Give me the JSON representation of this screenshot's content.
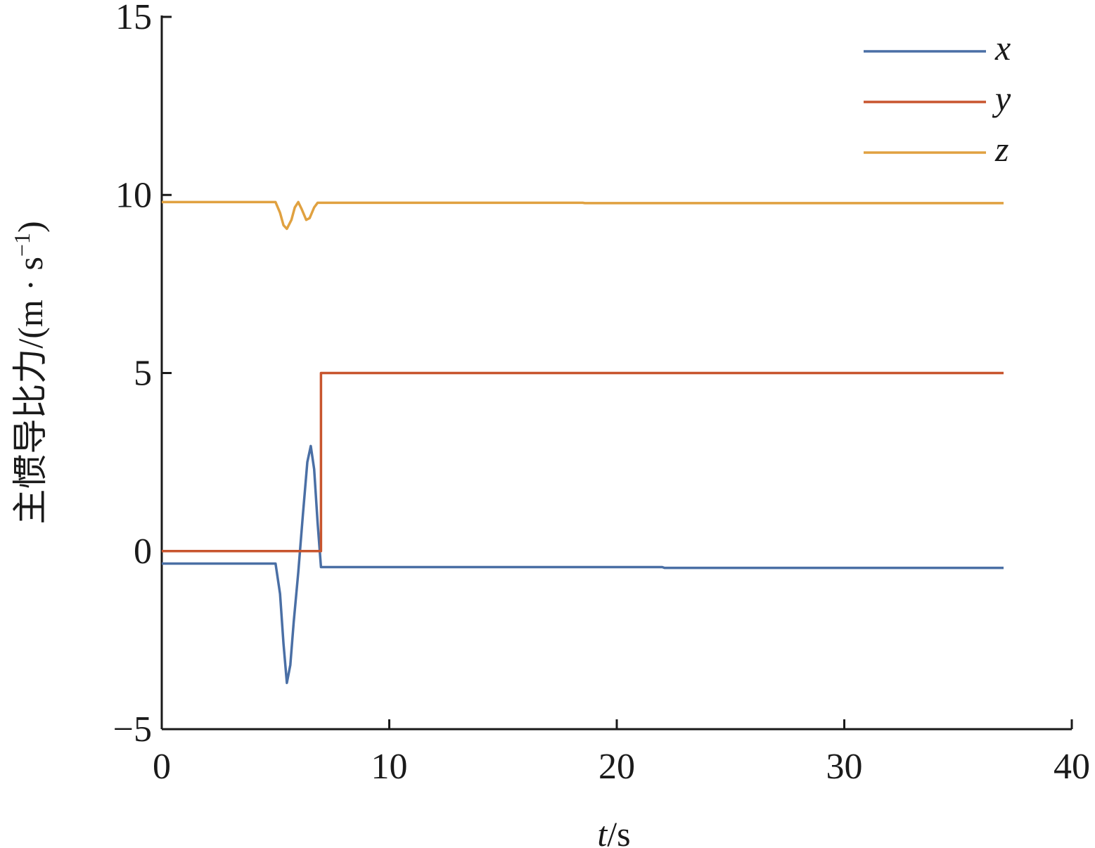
{
  "chart_data": {
    "type": "line",
    "title": "",
    "xlabel_italic": "t",
    "xlabel_unit": "/s",
    "ylabel": "主惯导比力/(m · s",
    "ylabel_sup": "−1",
    "ylabel_close": ")",
    "xlim": [
      0,
      40
    ],
    "ylim": [
      -5,
      15
    ],
    "xticks": [
      0,
      10,
      20,
      30,
      40
    ],
    "xtick_labels": [
      "0",
      "10",
      "20",
      "30",
      "40"
    ],
    "yticks": [
      -5,
      0,
      5,
      10,
      15
    ],
    "ytick_labels": [
      "−5",
      "0",
      "5",
      "10",
      "15"
    ],
    "grid": false,
    "legend_position": "top-right",
    "series": [
      {
        "name": "x",
        "color": "#4a6fa5",
        "points": [
          [
            0,
            -0.35
          ],
          [
            5.0,
            -0.35
          ],
          [
            5.2,
            -1.2
          ],
          [
            5.35,
            -2.6
          ],
          [
            5.5,
            -3.7
          ],
          [
            5.65,
            -3.2
          ],
          [
            5.8,
            -2.0
          ],
          [
            6.0,
            -0.6
          ],
          [
            6.2,
            1.0
          ],
          [
            6.4,
            2.5
          ],
          [
            6.55,
            2.95
          ],
          [
            6.7,
            2.3
          ],
          [
            6.85,
            0.8
          ],
          [
            7.0,
            -0.45
          ],
          [
            22,
            -0.45
          ],
          [
            22.1,
            -0.47
          ],
          [
            37,
            -0.47
          ]
        ]
      },
      {
        "name": "y",
        "color": "#c8552e",
        "points": [
          [
            0,
            0
          ],
          [
            7.0,
            0
          ],
          [
            7.0,
            5.0
          ],
          [
            37,
            5.0
          ]
        ]
      },
      {
        "name": "z",
        "color": "#e0a140",
        "points": [
          [
            0,
            9.8
          ],
          [
            5.0,
            9.8
          ],
          [
            5.2,
            9.5
          ],
          [
            5.35,
            9.15
          ],
          [
            5.5,
            9.05
          ],
          [
            5.7,
            9.3
          ],
          [
            5.85,
            9.65
          ],
          [
            6.0,
            9.8
          ],
          [
            6.15,
            9.6
          ],
          [
            6.35,
            9.3
          ],
          [
            6.5,
            9.35
          ],
          [
            6.7,
            9.65
          ],
          [
            6.85,
            9.78
          ],
          [
            18.5,
            9.78
          ],
          [
            18.6,
            9.77
          ],
          [
            37,
            9.77
          ]
        ]
      }
    ]
  }
}
